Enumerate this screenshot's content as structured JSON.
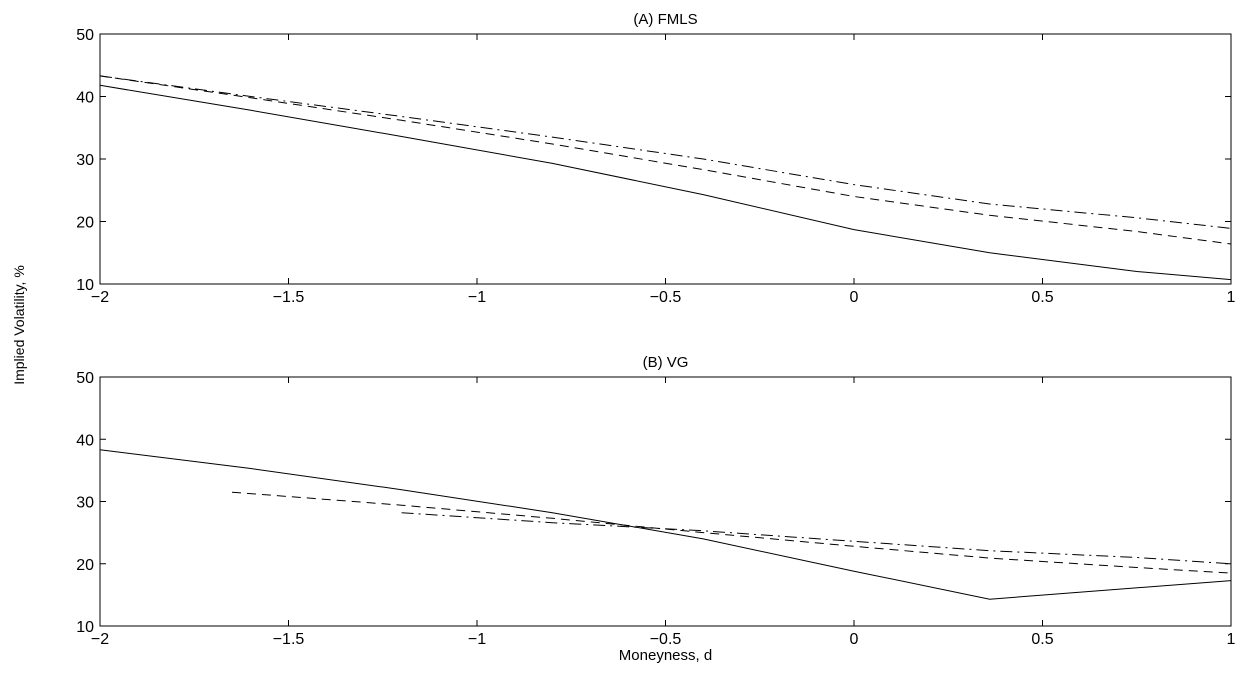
{
  "figure": {
    "ylabel": "Implied Volatility, %"
  },
  "chart_data": [
    {
      "type": "line",
      "title": "(A) FMLS",
      "xlabel": "",
      "ylabel": "Implied Volatility, %",
      "xlim": [
        -2,
        1
      ],
      "ylim": [
        10,
        50
      ],
      "xticks": [
        -2,
        -1.5,
        -1,
        -0.5,
        0,
        0.5,
        1
      ],
      "xtick_labels": [
        "−2",
        "−1.5",
        "−1",
        "−0.5",
        "0",
        "0.5",
        "1"
      ],
      "yticks": [
        10,
        20,
        30,
        40,
        50
      ],
      "ytick_labels": [
        "10",
        "20",
        "30",
        "40",
        "50"
      ],
      "grid": false,
      "series": [
        {
          "style": "solid",
          "x": [
            -2,
            -1.6,
            -1.2,
            -0.8,
            -0.4,
            0,
            0.36,
            0.75,
            1
          ],
          "y": [
            41.8,
            37.8,
            33.6,
            29.3,
            24.3,
            18.7,
            15.0,
            12.0,
            10.7
          ]
        },
        {
          "style": "dashed",
          "x": [
            -2,
            -1.6,
            -1.2,
            -0.8,
            -0.4,
            0,
            0.36,
            0.75,
            1
          ],
          "y": [
            43.3,
            39.8,
            36.2,
            32.4,
            28.3,
            24.0,
            21.0,
            18.4,
            16.4
          ]
        },
        {
          "style": "dashdot",
          "x": [
            -2,
            -1.6,
            -1.2,
            -0.8,
            -0.4,
            0,
            0.36,
            0.75,
            1
          ],
          "y": [
            43.3,
            40.0,
            36.8,
            33.5,
            30.0,
            25.9,
            22.8,
            20.6,
            18.9
          ]
        }
      ]
    },
    {
      "type": "line",
      "title": "(B) VG",
      "xlabel": "Moneyness, d",
      "ylabel": "Implied Volatility, %",
      "xlim": [
        -2,
        1
      ],
      "ylim": [
        10,
        50
      ],
      "xticks": [
        -2,
        -1.5,
        -1,
        -0.5,
        0,
        0.5,
        1
      ],
      "xtick_labels": [
        "−2",
        "−1.5",
        "−1",
        "−0.5",
        "0",
        "0.5",
        "1"
      ],
      "yticks": [
        10,
        20,
        30,
        40,
        50
      ],
      "ytick_labels": [
        "10",
        "20",
        "30",
        "40",
        "50"
      ],
      "grid": false,
      "series": [
        {
          "style": "solid",
          "x": [
            -2,
            -1.6,
            -1.2,
            -0.8,
            -0.4,
            0,
            0.36,
            1
          ],
          "y": [
            38.3,
            35.3,
            31.9,
            28.2,
            24.0,
            18.8,
            14.3,
            17.3
          ]
        },
        {
          "style": "dashed",
          "x": [
            -1.65,
            -1.2,
            -0.8,
            -0.4,
            0,
            0.36,
            0.75,
            1
          ],
          "y": [
            31.5,
            29.4,
            27.3,
            25.0,
            22.8,
            20.9,
            19.4,
            18.5
          ]
        },
        {
          "style": "dashdot",
          "x": [
            -1.2,
            -0.8,
            -0.4,
            0,
            0.36,
            0.75,
            1
          ],
          "y": [
            28.2,
            26.6,
            25.3,
            23.6,
            22.1,
            21.0,
            20.0
          ]
        }
      ]
    }
  ]
}
